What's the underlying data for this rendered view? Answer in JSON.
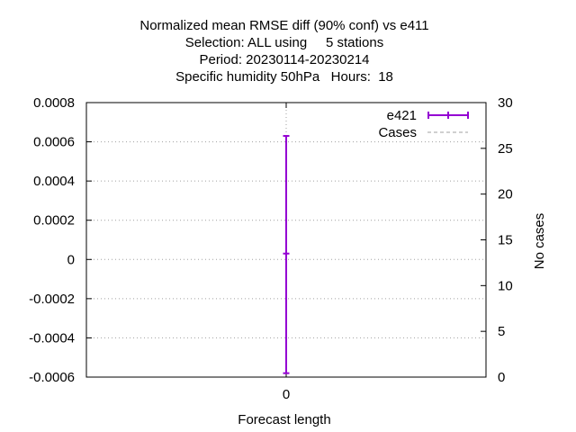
{
  "chart_data": {
    "type": "line",
    "title_lines": [
      "Normalized mean RMSE diff (90% conf) vs e411",
      "Selection: ALL using     5 stations",
      "Period: 20230114-20230214",
      "Specific humidity 50hPa   Hours:  18"
    ],
    "xlabel": "Forecast length",
    "ylabel": "",
    "y2label": "No cases",
    "x_ticks": [
      "0"
    ],
    "y_ticks": [
      "0.0008",
      "0.0006",
      "0.0004",
      "0.0002",
      "0",
      "-0.0002",
      "-0.0004",
      "-0.0006"
    ],
    "y2_ticks": [
      "30",
      "25",
      "20",
      "15",
      "10",
      "5",
      "0"
    ],
    "ylim": [
      -0.0006,
      0.0008
    ],
    "y2lim": [
      0,
      30
    ],
    "xlim": [
      -1,
      1
    ],
    "grid": true,
    "legend_position": "top-right",
    "series": [
      {
        "name": "e421",
        "color": "#9400d3",
        "points": [
          {
            "x": 0,
            "y": 3e-05,
            "ylow": -0.00058,
            "yhigh": 0.00063
          }
        ]
      },
      {
        "name": "Cases",
        "color": "#a0a0a0",
        "style": "dashed",
        "points": []
      }
    ]
  }
}
